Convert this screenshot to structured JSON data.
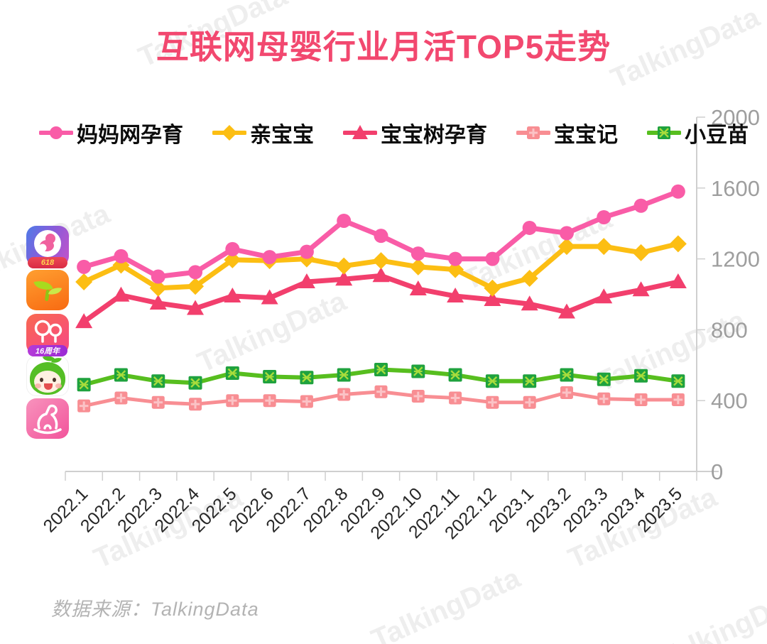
{
  "title": "互联网母婴行业月活TOP5走势",
  "source_note": "数据来源：TalkingData",
  "watermark": "TalkingData",
  "colors": {
    "title": "#F2486F",
    "axis": "#cfcfcf",
    "y_labels": "#9e9e9e",
    "x_labels": "#262626",
    "watermark": "#d7d7d7"
  },
  "app_icons": [
    {
      "slug": "mamawang-yunyu",
      "name": "妈妈网孕育",
      "badge": "618"
    },
    {
      "slug": "qinbaobao",
      "name": "亲宝宝",
      "badge": ""
    },
    {
      "slug": "baobaoshu-yunyu",
      "name": "宝宝树孕育",
      "badge": "16周年"
    },
    {
      "slug": "xiaodoumiao",
      "name": "小豆苗",
      "badge": ""
    },
    {
      "slug": "baobaoji",
      "name": "宝宝记",
      "badge": ""
    }
  ],
  "chart_data": {
    "type": "line",
    "title": "互联网母婴行业月活TOP5走势",
    "xlabel": "",
    "ylabel": "",
    "ylim": [
      0,
      2000
    ],
    "yticks": [
      0,
      400,
      800,
      1200,
      1600,
      2000
    ],
    "grid": false,
    "legend_position": "top",
    "categories": [
      "2022.1",
      "2022.2",
      "2022.3",
      "2022.4",
      "2022.5",
      "2022.6",
      "2022.7",
      "2022.8",
      "2022.9",
      "2022.10",
      "2022.11",
      "2022.12",
      "2023.1",
      "2023.2",
      "2023.3",
      "2023.4",
      "2023.5"
    ],
    "series": [
      {
        "name": "妈妈网孕育",
        "slug": "mamawang-yunyu",
        "marker": "circle",
        "color": "#F95CA7",
        "width": 7,
        "values": [
          1155,
          1215,
          1100,
          1125,
          1255,
          1210,
          1240,
          1415,
          1330,
          1230,
          1200,
          1200,
          1375,
          1345,
          1435,
          1500,
          1580
        ]
      },
      {
        "name": "亲宝宝",
        "slug": "qinbaobao",
        "marker": "diamond",
        "color": "#FCBE13",
        "width": 7,
        "values": [
          1070,
          1165,
          1035,
          1045,
          1195,
          1190,
          1200,
          1160,
          1190,
          1155,
          1140,
          1035,
          1090,
          1270,
          1270,
          1235,
          1285
        ]
      },
      {
        "name": "宝宝树孕育",
        "slug": "baobaoshu-yunyu",
        "marker": "triangle",
        "color": "#F23F6D",
        "width": 7,
        "values": [
          845,
          995,
          950,
          920,
          990,
          980,
          1070,
          1085,
          1105,
          1030,
          990,
          970,
          945,
          900,
          985,
          1025,
          1070
        ]
      },
      {
        "name": "宝宝记",
        "slug": "baobaoji",
        "marker": "square-plus",
        "color": "#F88E93",
        "marker_fill": "#F88E93",
        "marker_stroke": "#FBC3C6",
        "width": 5,
        "values": [
          370,
          415,
          390,
          380,
          400,
          400,
          395,
          435,
          450,
          425,
          415,
          390,
          390,
          445,
          410,
          405,
          405
        ]
      },
      {
        "name": "小豆苗",
        "slug": "xiaodoumiao",
        "marker": "square-x",
        "color": "#57BE1F",
        "marker_fill": "#1FA23E",
        "marker_stroke": "#A8DC3C",
        "width": 6,
        "values": [
          490,
          545,
          510,
          500,
          555,
          535,
          530,
          545,
          575,
          565,
          545,
          510,
          510,
          545,
          520,
          540,
          510
        ]
      }
    ]
  }
}
